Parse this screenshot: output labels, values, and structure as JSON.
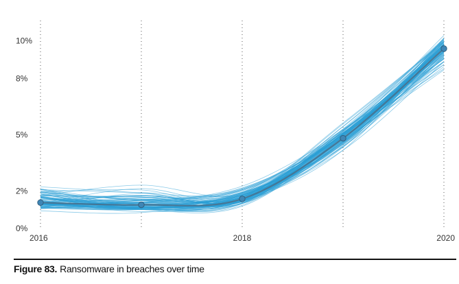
{
  "chart_data": {
    "type": "line",
    "x": [
      2016,
      2017,
      2018,
      2019,
      2020
    ],
    "x_tick_labels": [
      "2016",
      "2018",
      "2020"
    ],
    "y_tick_labels": [
      "0%",
      "2%",
      "5%",
      "8%",
      "10%"
    ],
    "ylim": [
      0,
      0.105
    ],
    "xlim": [
      2016,
      2020
    ],
    "grid": "vertical dotted lines at each year",
    "series": [
      {
        "values": [
          0.0138,
          0.0126,
          0.0158,
          0.0481,
          0.0959
        ],
        "color": "#4a6f8a",
        "style": "median line with point markers"
      }
    ],
    "uncertainty": {
      "style": "many thin simulated draws around the median",
      "color": "#2a9fd6",
      "min": [
        0.0085,
        0.0078,
        0.0112,
        0.04,
        0.082
      ],
      "max": [
        0.0245,
        0.0255,
        0.0245,
        0.058,
        0.105
      ]
    },
    "colors": {
      "draws": "#2a9fd6",
      "median": "#4a6f8a",
      "marker": "#3f86b5"
    }
  },
  "caption": {
    "label": "Figure 83.",
    "text": "Ransomware in breaches over time"
  }
}
